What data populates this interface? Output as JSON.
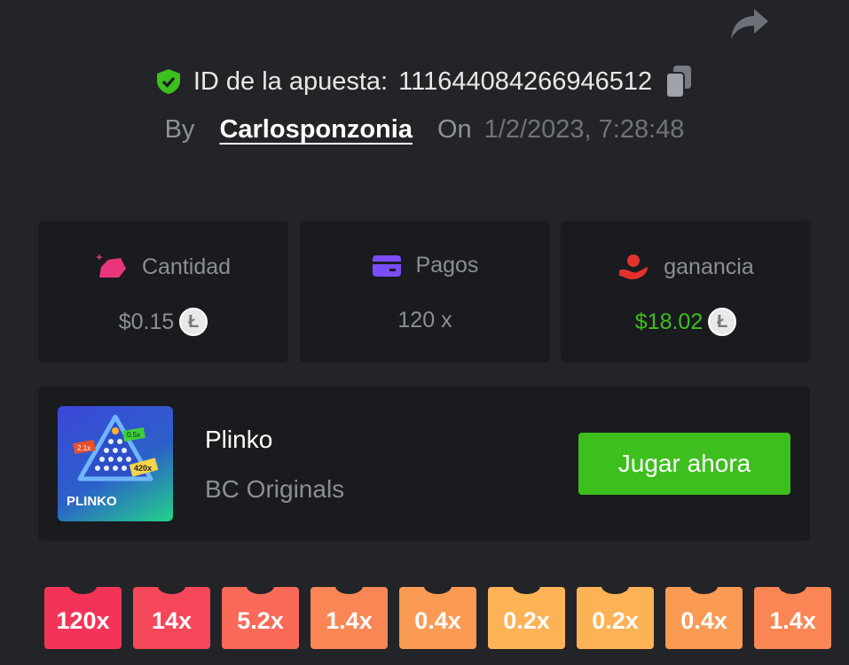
{
  "header": {
    "share_icon": "share-icon",
    "shield_icon": "shield-check-icon",
    "bet_id_label": "ID de la apuesta:",
    "bet_id": "1116440842669465 12",
    "copy_icon": "copy-icon",
    "by_label": "By",
    "username": "Carlosponzonia",
    "on_label": "On",
    "datetime": "1/2/2023, 7:28:48"
  },
  "stats": [
    {
      "label": "Cantidad",
      "value": "$0.15",
      "icon": "money-bag-icon",
      "icon_color": "#e8357c",
      "coin": "litecoin-icon",
      "value_color": "#8a8f96"
    },
    {
      "label": "Pagos",
      "value": "120 x",
      "icon": "credit-card-icon",
      "icon_color": "#7b4dfa",
      "value_color": "#8a8f96"
    },
    {
      "label": "ganancia",
      "value": "$18.02",
      "icon": "hand-money-icon",
      "icon_color": "#e4302d",
      "coin": "litecoin-icon",
      "value_color": "#3dbf1d"
    }
  ],
  "game": {
    "name": "Plinko",
    "provider": "BC Originals",
    "play_label": "Jugar ahora",
    "thumb_title": "PLINKO",
    "thumb_tags": [
      "2.1x",
      "0.5x",
      "420x"
    ]
  },
  "buckets": [
    {
      "label": "120x",
      "color": "#f33458"
    },
    {
      "label": "14x",
      "color": "#f6475a"
    },
    {
      "label": "5.2x",
      "color": "#f96a58"
    },
    {
      "label": "1.4x",
      "color": "#fa8655"
    },
    {
      "label": "0.4x",
      "color": "#fb9a53"
    },
    {
      "label": "0.2x",
      "color": "#fdb255"
    },
    {
      "label": "0.2x",
      "color": "#fdb255"
    },
    {
      "label": "0.4x",
      "color": "#fb9a53"
    },
    {
      "label": "1.4x",
      "color": "#fa8655"
    }
  ]
}
